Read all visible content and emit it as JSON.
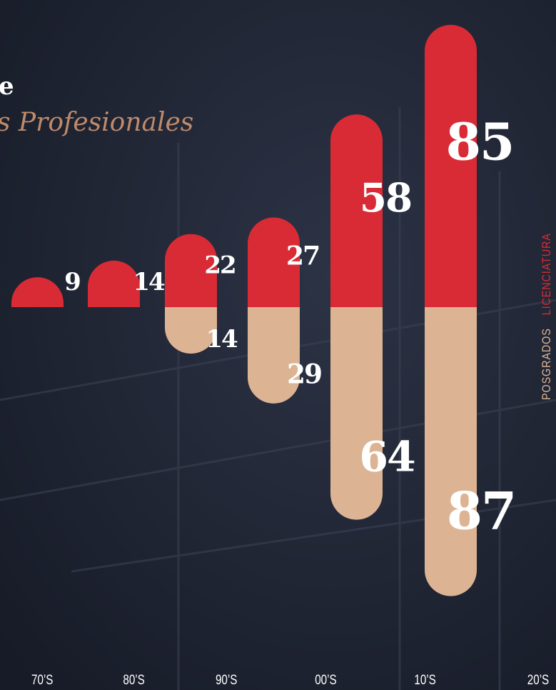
{
  "chart_data": {
    "type": "diverging-bar",
    "title": "e",
    "subtitle": "s Profesionales",
    "categories": [
      "70’S",
      "80’S",
      "90’S",
      "00’S",
      "10’S",
      "20’S"
    ],
    "series": [
      {
        "name": "LICENCIATURA",
        "color": "#d92b35",
        "values": [
          9,
          14,
          22,
          27,
          58,
          85
        ]
      },
      {
        "name": "POSGRADOS",
        "color": "#dcb493",
        "values": [
          null,
          null,
          14,
          29,
          64,
          87
        ]
      }
    ]
  }
}
